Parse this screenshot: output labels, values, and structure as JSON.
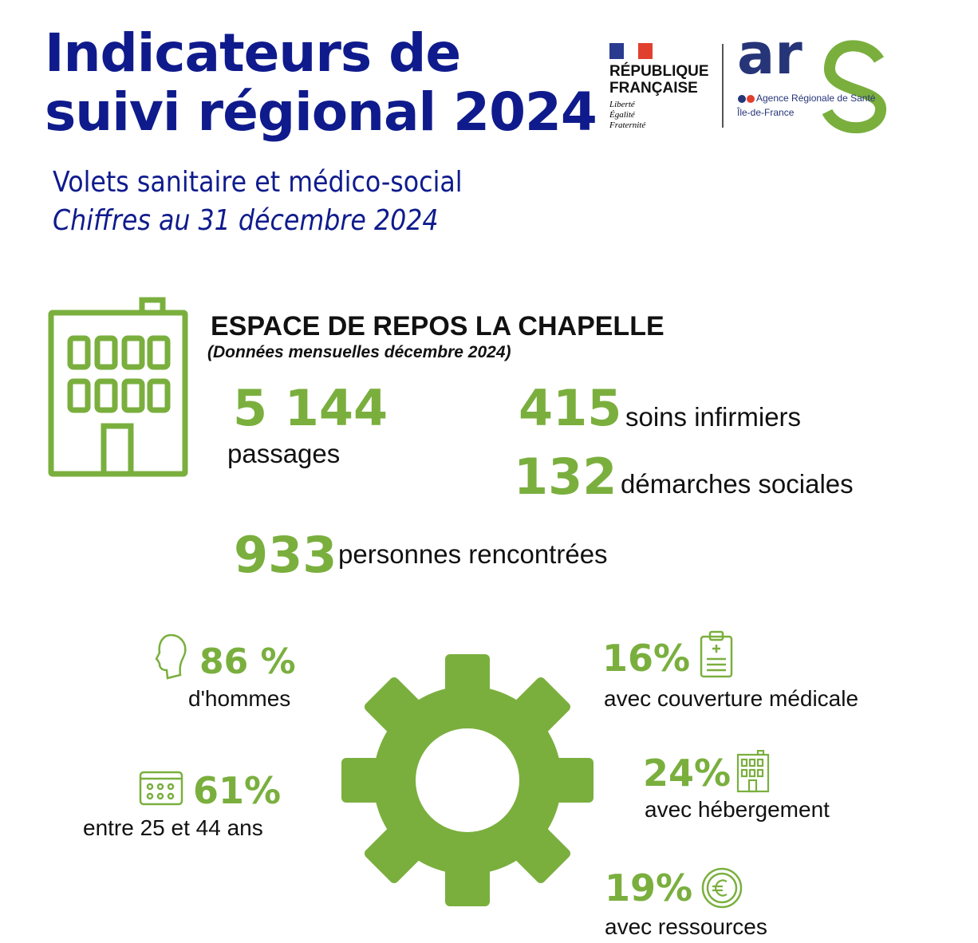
{
  "header": {
    "title_line1": "Indicateurs de",
    "title_line2": "suivi régional 2024",
    "subtitle": "Volets sanitaire et médico-social",
    "date": "Chiffres au 31 décembre 2024"
  },
  "logos": {
    "rf_line1": "RÉPUBLIQUE",
    "rf_line2": "FRANÇAISE",
    "motto": [
      "Liberté",
      "Égalité",
      "Fraternité"
    ],
    "ars": "ars",
    "ars_name": "Agence Régionale de Santé",
    "ars_region": "Île-de-France"
  },
  "section": {
    "title": "ESPACE DE REPOS LA CHAPELLE",
    "period": "(Données mensuelles décembre 2024)"
  },
  "stats": {
    "passages": {
      "value": "5 144",
      "label": "passages"
    },
    "soins": {
      "value": "415",
      "label": "soins infirmiers"
    },
    "demarches": {
      "value": "132",
      "label": "démarches sociales"
    },
    "personnes": {
      "value": "933",
      "label": "personnes rencontrées"
    },
    "hommes": {
      "value": "86 %",
      "label": "d'hommes"
    },
    "age": {
      "value": "61%",
      "label": "entre 25 et 44 ans"
    },
    "couverture": {
      "value": "16%",
      "label": "avec couverture médicale"
    },
    "hebergement": {
      "value": "24%",
      "label": "avec hébergement"
    },
    "ressources": {
      "value": "19%",
      "label": "avec ressources"
    }
  },
  "colors": {
    "navy": "#0f1b8c",
    "green": "#7aaf3e"
  }
}
